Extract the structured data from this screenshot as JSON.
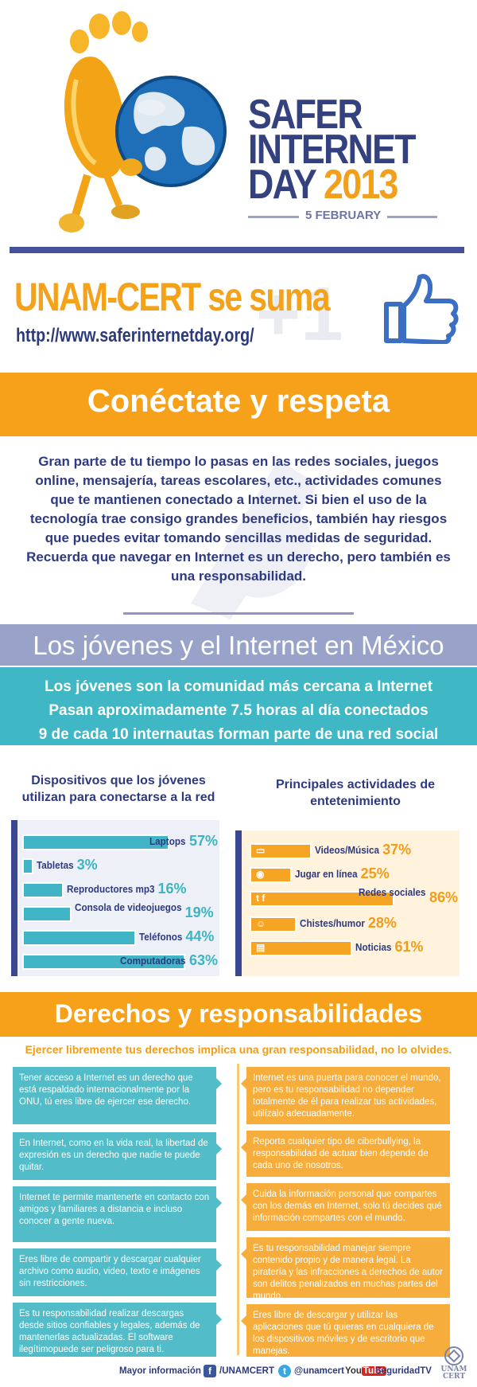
{
  "header": {
    "title_lines": [
      "SAFER",
      "INTERNET",
      "DAY"
    ],
    "year": "2013",
    "date": "5 FEBRUARY",
    "join_title": "UNAM-CERT se suma",
    "url": "http://www.saferinternetday.org/",
    "plus_one": "+1"
  },
  "intro": {
    "heading": "Conéctate y respeta",
    "paragraph": "Gran parte de tu tiempo lo pasas en las redes sociales, juegos online, mensajería, tareas escolares, etc., actividades comunes que te mantienen conectado a Internet. Si bien el uso de la tecnología trae consigo grandes beneficios, también hay riesgos que puedes evitar tomando sencillas medidas de seguridad. Recuerda que navegar en Internet es un derecho, pero también es una responsabilidad."
  },
  "youth": {
    "heading": "Los jóvenes y el Internet en México",
    "facts": [
      "Los jóvenes son la comunidad más cercana a Internet",
      "Pasan aproximadamente 7.5 horas al día conectados",
      "9 de cada 10 internautas forman parte de una red social"
    ]
  },
  "devices": {
    "title": "Dispositivos que los jóvenes utilizan para conectarse a la red",
    "items": [
      {
        "label": "Laptops",
        "value": 57,
        "pct": "57%"
      },
      {
        "label": "Tabletas",
        "value": 3,
        "pct": "3%"
      },
      {
        "label": "Reproductores mp3",
        "value": 16,
        "pct": "16%"
      },
      {
        "label": "Consola de videojuegos",
        "value": 19,
        "pct": "19%"
      },
      {
        "label": "Teléfonos",
        "value": 44,
        "pct": "44%"
      },
      {
        "label": "Computadoras",
        "value": 63,
        "pct": "63%"
      }
    ]
  },
  "activities": {
    "title": "Principales actividades de entetenimiento",
    "items": [
      {
        "label": "Videos/Música",
        "value": 37,
        "pct": "37%",
        "icon": "video-icon"
      },
      {
        "label": "Jugar en línea",
        "value": 25,
        "pct": "25%",
        "icon": "gamepad-icon"
      },
      {
        "label": "Redes sociales",
        "value": 86,
        "pct": "86%",
        "icon": "social-icon"
      },
      {
        "label": "Chistes/humor",
        "value": 28,
        "pct": "28%",
        "icon": "smiley-icon"
      },
      {
        "label": "Noticias",
        "value": 61,
        "pct": "61%",
        "icon": "newspaper-icon"
      }
    ]
  },
  "rights": {
    "heading": "Derechos y responsabilidades",
    "subtitle": "Ejercer libremente tus derechos implica una gran responsabilidad, no lo olvides.",
    "left": [
      "Tener acceso a Internet es un derecho que está respaldado internacionalmente por la ONU, tú eres libre de ejercer ese derecho.",
      "En Internet, como en la vida real, la libertad de expresión es un derecho que nadie te puede quitar.",
      "Internet te permite mantenerte en contacto con amigos y familiares a distancia e incluso conocer a gente nueva.",
      "Eres libre de compartir y descargar cualquier archivo como audio, video, texto e imágenes sin restricciones.",
      "Es tu responsabilidad realizar descargas desde sitios confiables y legales, además de mantenerlas actualizadas. El software ilegítimopuede ser peligroso para ti."
    ],
    "right": [
      "Internet es una puerta para conocer el mundo, pero es tu responsabilidad no depender totalmente de él para realizar tus actividades, utilízalo adecuadamente.",
      "Reporta cualquier tipo de ciberbullying, la responsabilidad de actuar bien depende de cada uno de nosotros.",
      "Cuida la información personal que compartes con los demás en Internet, solo tú decides qué información compartes con el mundo.",
      "Es tu responsabilidad manejar siempre contenido propio y de manera legal. La piratería y las infracciones a derechos de autor son delitos penalizados en muchas partes del mundo.",
      "Eres libre de descargar y utilizar las aplicaciones que tú quieras en cualquiera de los dispositivos móviles y de escritorio que manejas."
    ]
  },
  "footer": {
    "more_info": "Mayor información",
    "facebook": "/UNAMCERT",
    "twitter": "@unamcert",
    "youtube_prefix": "You",
    "youtube_tube": "Tube",
    "youtube": "SeguridadTV",
    "logo_text": "UNAM CERT"
  },
  "colors": {
    "navy": "#34417f",
    "orange": "#f7a11a",
    "teal": "#3fb7c5",
    "lavender": "#99a3c9"
  }
}
